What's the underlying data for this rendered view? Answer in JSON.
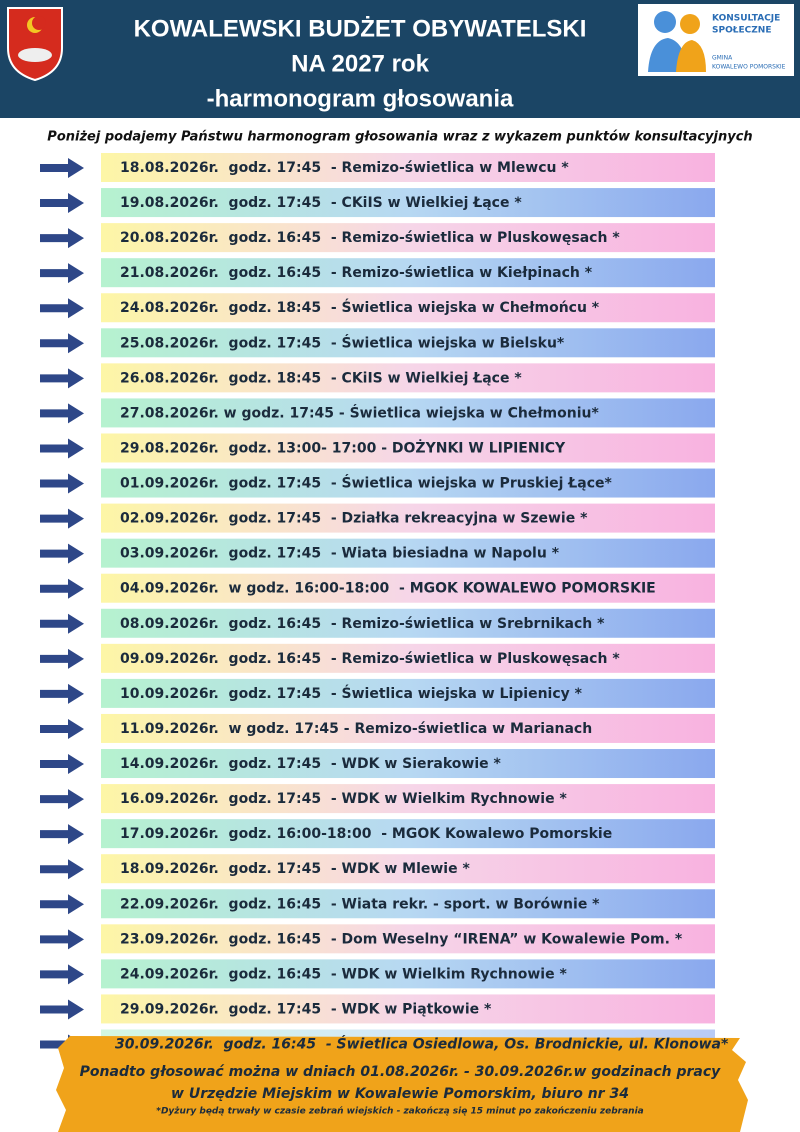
{
  "header": {
    "title_lines": [
      "KOWALEWSKI BUDŻET OBYWATELSKI",
      "NA 2027 rok",
      "-harmonogram głosowania"
    ],
    "logo": {
      "line1": "KONSULTACJE",
      "line2": "SPOŁECZNE",
      "line3": "GMINA",
      "line4": "KOWALEWO POMORSKIE"
    }
  },
  "subtitle": "Poniżej podajemy Państwu harmonogram głosowania wraz z wykazem punktów konsultacyjnych",
  "schedule": [
    "18.08.2026r.  godz. 17:45  - Remizo-świetlica w Mlewcu *",
    "19.08.2026r.  godz. 17:45  - CKiIS w Wielkiej Łące *",
    "20.08.2026r.  godz. 16:45  - Remizo-świetlica w Pluskowęsach *",
    "21.08.2026r.  godz. 16:45  - Remizo-świetlica w Kiełpinach *",
    "24.08.2026r.  godz. 18:45  - Świetlica wiejska w Chełmońcu *",
    "25.08.2026r.  godz. 17:45  - Świetlica wiejska w Bielsku*",
    "26.08.2026r.  godz. 18:45  - CKiIS w Wielkiej Łące *",
    "27.08.2026r. w godz. 17:45 - Świetlica wiejska w Chełmoniu*",
    "29.08.2026r.  godz. 13:00- 17:00 - DOŻYNKI W LIPIENICY",
    "01.09.2026r.  godz. 17:45  - Świetlica wiejska w Pruskiej Łące*",
    "02.09.2026r.  godz. 17:45  - Działka rekreacyjna w Szewie *",
    "03.09.2026r.  godz. 17:45  - Wiata biesiadna w Napolu *",
    "04.09.2026r.  w godz. 16:00-18:00  - MGOK KOWALEWO POMORSKIE",
    "08.09.2026r.  godz. 16:45  - Remizo-świetlica w Srebrnikach *",
    "09.09.2026r.  godz. 16:45  - Remizo-świetlica w Pluskowęsach *",
    "10.09.2026r.  godz. 17:45  - Świetlica wiejska w Lipienicy *",
    "11.09.2026r.  w godz. 17:45 - Remizo-świetlica w Marianach",
    "14.09.2026r.  godz. 17:45  - WDK w Sierakowie *",
    "16.09.2026r.  godz. 17:45  - WDK w Wielkim Rychnowie *",
    "17.09.2026r.  godz. 16:00-18:00  - MGOK Kowalewo Pomorskie",
    "18.09.2026r.  godz. 17:45  - WDK w Mlewie *",
    "22.09.2026r.  godz. 16:45  - Wiata rekr. - sport. w Borównie *",
    "23.09.2026r.  godz. 16:45  - Dom Weselny “IRENA” w Kowalewie Pom. *",
    "24.09.2026r.  godz. 16:45  - WDK w Wielkim Rychnowie *",
    "29.09.2026r.  godz. 17:45  - WDK w Piątkowie *",
    "30.09.2026r.  godz. 16:45  - Świetlica Osiedlowa, Os. Brodnickie, ul. Klonowa*"
  ],
  "footer": {
    "line1": "Ponadto głosować można w dniach 01.08.2026r. - 30.09.2026r.w godzinach pracy",
    "line2": "w Urzędzie Miejskim w Kowalewie Pomorskim, biuro nr 34",
    "note": "*Dyżury będą trwały w czasie zebrań wiejskich - zakończą się 15 minut po zakończeniu zebrania"
  }
}
